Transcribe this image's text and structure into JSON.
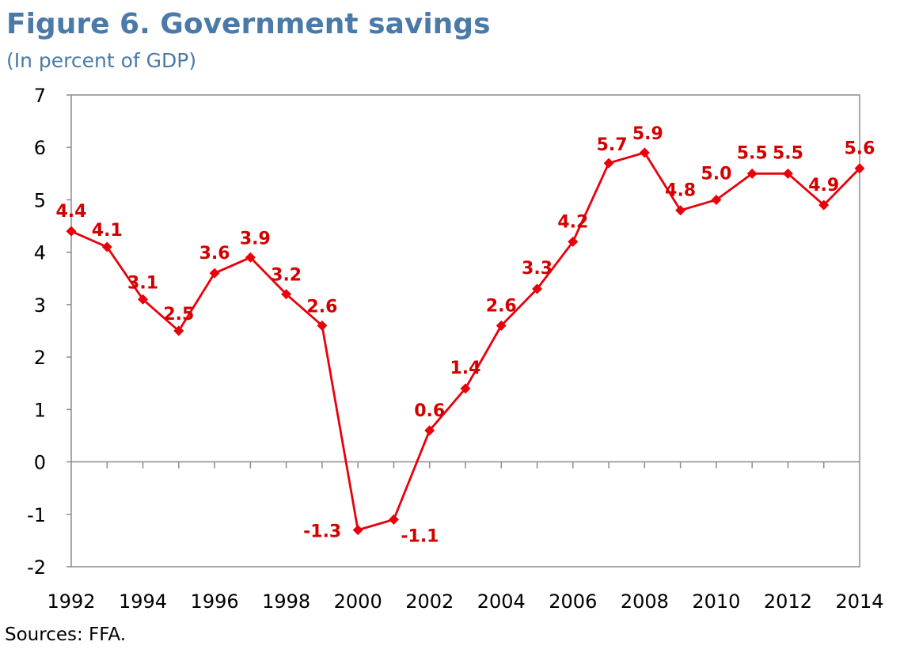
{
  "title": "Figure 6. Government savings",
  "subtitle": "(In percent of GDP)",
  "source": "Sources: FFA.",
  "colors": {
    "series": "#e8000b",
    "label": "#d40000",
    "title": "#4a7aa8"
  },
  "chart_data": {
    "type": "line",
    "x": [
      1992,
      1993,
      1994,
      1995,
      1996,
      1997,
      1998,
      1999,
      2000,
      2001,
      2002,
      2003,
      2004,
      2005,
      2006,
      2007,
      2008,
      2009,
      2010,
      2011,
      2012,
      2013,
      2014
    ],
    "series": [
      {
        "values": [
          4.4,
          4.1,
          3.1,
          2.5,
          3.6,
          3.9,
          3.2,
          2.6,
          -1.3,
          -1.1,
          0.6,
          1.4,
          2.6,
          3.3,
          4.2,
          5.7,
          5.9,
          4.8,
          5.0,
          5.5,
          5.5,
          4.9,
          5.6
        ],
        "labels": [
          "4.4",
          "4.1",
          "3.1",
          "2.5",
          "3.6",
          "3.9",
          "3.2",
          "2.6",
          "-1.3",
          "-1.1",
          "0.6",
          "1.4",
          "2.6",
          "3.3",
          "4.2",
          "5.7",
          "5.9",
          "4.8",
          "5.0",
          "5.5",
          "5.5",
          "4.9",
          "5.6"
        ]
      }
    ],
    "ylim": [
      -2,
      7
    ],
    "yticks": [
      "7",
      "6",
      "5",
      "4",
      "3",
      "2",
      "1",
      "0",
      "-1",
      "-2"
    ],
    "xticks": [
      "1992",
      "1994",
      "1996",
      "1998",
      "2000",
      "2002",
      "2004",
      "2006",
      "2008",
      "2010",
      "2012",
      "2014"
    ],
    "grid": false,
    "legend": "none",
    "xlabel": "",
    "ylabel": ""
  }
}
